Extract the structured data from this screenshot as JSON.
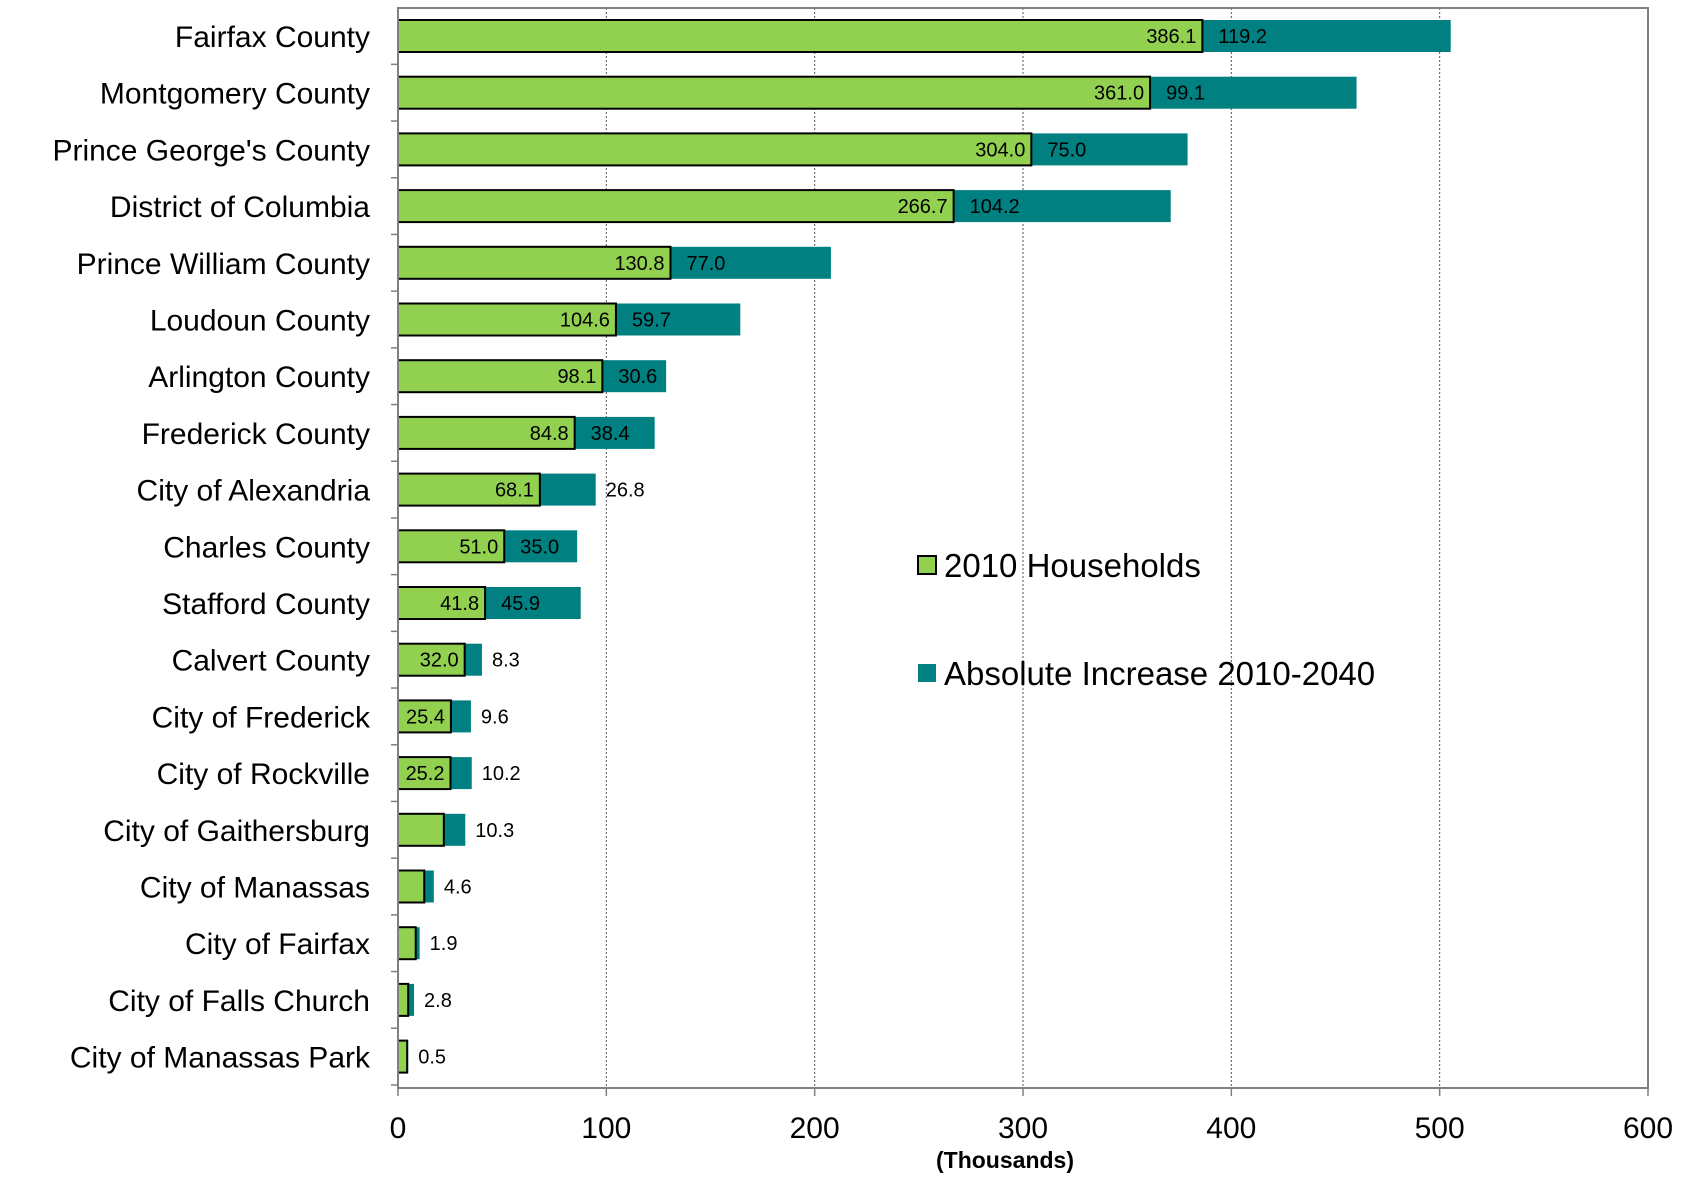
{
  "chart_data": {
    "type": "bar",
    "orientation": "horizontal",
    "stacked": true,
    "categories": [
      "Fairfax County",
      "Montgomery County",
      "Prince George's County",
      "District of Columbia",
      "Prince William County",
      "Loudoun County",
      "Arlington County",
      "Frederick County",
      "City of Alexandria",
      "Charles County",
      "Stafford County",
      "Calvert County",
      "City of Frederick",
      "City of Rockville",
      "City of Gaithersburg",
      "City of Manassas",
      "City of Fairfax",
      "City of Falls Church",
      "City of Manassas Park"
    ],
    "series": [
      {
        "name": "2010 Households",
        "color": "#92d050",
        "values": [
          386.1,
          361.0,
          304.0,
          266.7,
          130.8,
          104.6,
          98.1,
          84.8,
          68.1,
          51.0,
          41.8,
          32.0,
          25.4,
          25.2,
          22.0,
          12.6,
          8.5,
          4.9,
          4.4
        ],
        "labels": [
          "386.1",
          "361.0",
          "304.0",
          "266.7",
          "130.8",
          "104.6",
          "98.1",
          "84.8",
          "68.1",
          "51.0",
          "41.8",
          "32.0",
          "25.4",
          "25.2",
          "",
          "",
          "",
          "",
          ""
        ]
      },
      {
        "name": "Absolute Increase 2010-2040",
        "color": "#008080",
        "values": [
          119.2,
          99.1,
          75.0,
          104.2,
          77.0,
          59.7,
          30.6,
          38.4,
          26.8,
          35.0,
          45.9,
          8.3,
          9.6,
          10.2,
          10.3,
          4.6,
          1.9,
          2.8,
          0.5
        ],
        "labels": [
          "119.2",
          "99.1",
          "75.0",
          "104.2",
          "77.0",
          "59.7",
          "30.6",
          "38.4",
          "26.8",
          "35.0",
          "45.9",
          "8.3",
          "9.6",
          "10.2",
          "10.3",
          "4.6",
          "1.9",
          "2.8",
          "0.5"
        ]
      }
    ],
    "xlabel": "(Thousands)",
    "xlim": [
      0,
      600
    ],
    "xticks": [
      "0",
      "100",
      "200",
      "300",
      "400",
      "500",
      "600"
    ],
    "grid": "vertical dotted",
    "legend_placement": "center-right"
  }
}
